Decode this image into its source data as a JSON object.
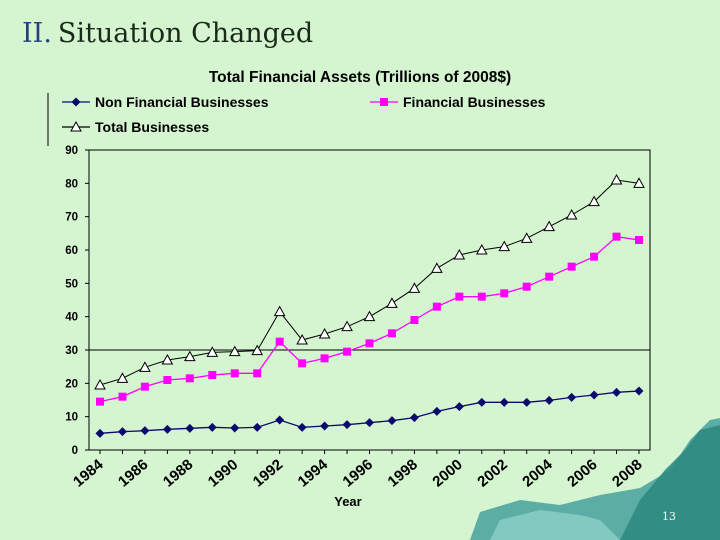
{
  "slide": {
    "section_number": "II.",
    "title": "Situation Changed",
    "page_number": "13"
  },
  "colors": {
    "non_financial": "#0a0a6e",
    "financial": "#ff00ff",
    "total": "#000000",
    "reference_line": "#000000"
  },
  "chart_data": {
    "type": "line",
    "title": "Total Financial Assets (Trillions of 2008$)",
    "xlabel": "Year",
    "ylabel": "",
    "ylim": [
      0,
      90
    ],
    "yticks": [
      0,
      10,
      20,
      30,
      40,
      50,
      60,
      70,
      80,
      90
    ],
    "xticks": [
      "1984",
      "1986",
      "1988",
      "1990",
      "1992",
      "1994",
      "1996",
      "1998",
      "2000",
      "2002",
      "2004",
      "2006",
      "2008"
    ],
    "x": [
      1984,
      1985,
      1986,
      1987,
      1988,
      1989,
      1990,
      1991,
      1992,
      1993,
      1994,
      1995,
      1996,
      1997,
      1998,
      1999,
      2000,
      2001,
      2002,
      2003,
      2004,
      2005,
      2006,
      2007,
      2008
    ],
    "reference_line_y": 30,
    "legend_position": "top-left",
    "series": [
      {
        "name": "Non Financial Businesses",
        "marker": "diamond",
        "values": [
          5,
          5.5,
          5.8,
          6.2,
          6.5,
          6.8,
          6.6,
          6.8,
          9,
          6.8,
          7.2,
          7.6,
          8.2,
          8.8,
          9.7,
          11.6,
          13,
          14.3,
          14.3,
          14.3,
          14.9,
          15.8,
          16.5,
          17.3,
          17.7
        ]
      },
      {
        "name": "Financial Businesses",
        "marker": "square",
        "values": [
          14.5,
          16,
          19,
          21,
          21.5,
          22.5,
          23,
          23,
          32.5,
          26,
          27.5,
          29.5,
          32,
          35,
          39,
          43,
          46,
          46,
          47,
          49,
          52,
          55,
          58,
          64,
          63
        ]
      },
      {
        "name": "Total Businesses",
        "marker": "triangle",
        "values": [
          19.5,
          21.5,
          24.8,
          27,
          28,
          29.3,
          29.5,
          29.8,
          41.5,
          33,
          34.8,
          37,
          40,
          44,
          48.5,
          54.5,
          58.5,
          60,
          61,
          63.5,
          67,
          70.5,
          74.5,
          81,
          80
        ]
      }
    ]
  }
}
